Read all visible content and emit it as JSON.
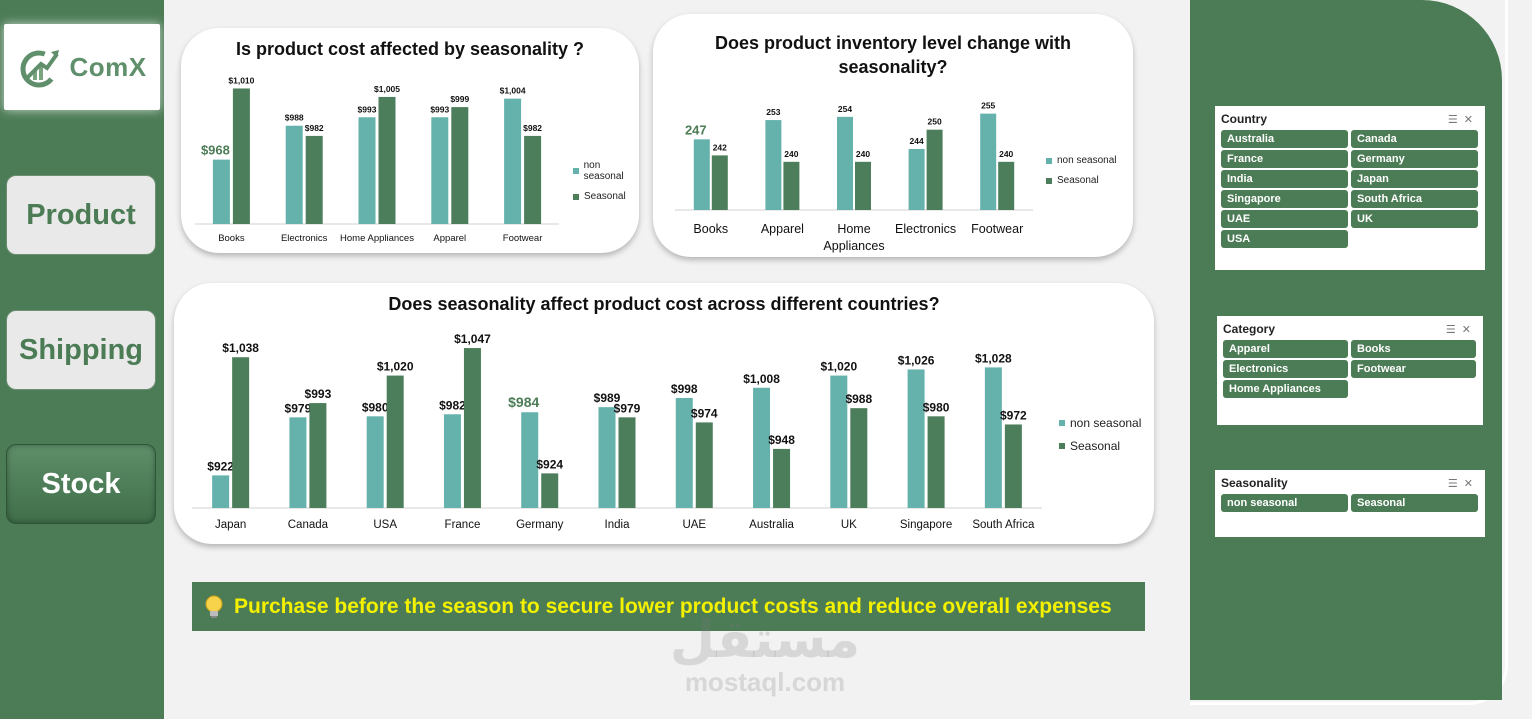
{
  "sidebar": {
    "logo_text": "ComX",
    "nav": [
      {
        "label": "Product"
      },
      {
        "label": "Shipping"
      },
      {
        "label": "Stock"
      }
    ]
  },
  "colors": {
    "non_seasonal": "#65b2ac",
    "seasonal": "#4d7e5b",
    "highlight": "#4c7c56",
    "insight_text": "#f3f000"
  },
  "insight": {
    "text": "Purchase before the season to secure lower product costs and reduce overall expenses"
  },
  "watermark": {
    "arabic": "مستقل",
    "latin": "mostaql.com"
  },
  "legend": {
    "non_seasonal": "non seasonal",
    "seasonal": "Seasonal"
  },
  "chart_data": [
    {
      "id": "cost_by_category",
      "type": "bar",
      "title": "Is product cost affected by seasonality ?",
      "categories": [
        "Books",
        "Electronics",
        "Home Appliances",
        "Apparel",
        "Footwear"
      ],
      "series": [
        {
          "name": "non seasonal",
          "values": [
            968,
            988,
            993,
            993,
            1004
          ],
          "labels": [
            "$968",
            "$988",
            "$993",
            "$993",
            "$1,004"
          ]
        },
        {
          "name": "Seasonal",
          "values": [
            1010,
            982,
            1005,
            999,
            982
          ],
          "labels": [
            "$1,010",
            "$982",
            "$1,005",
            "$999",
            "$982"
          ]
        }
      ],
      "ylim": [
        930,
        1015
      ],
      "highlight": {
        "series": 0,
        "index": 0
      }
    },
    {
      "id": "inventory_by_category",
      "type": "bar",
      "title": "Does product inventory level change with seasonality?",
      "categories": [
        "Books",
        "Apparel",
        "Home Appliances",
        "Electronics",
        "Footwear"
      ],
      "series": [
        {
          "name": "non seasonal",
          "values": [
            247,
            253,
            254,
            244,
            255
          ],
          "labels": [
            "247",
            "253",
            "254",
            "244",
            "255"
          ]
        },
        {
          "name": "Seasonal",
          "values": [
            242,
            240,
            240,
            250,
            240
          ],
          "labels": [
            "242",
            "240",
            "240",
            "250",
            "240"
          ]
        }
      ],
      "ylim": [
        225,
        258
      ],
      "highlight": {
        "series": 0,
        "index": 0
      }
    },
    {
      "id": "cost_by_country",
      "type": "bar",
      "title": "Does seasonality affect product cost across different countries?",
      "categories": [
        "Japan",
        "Canada",
        "USA",
        "France",
        "Germany",
        "India",
        "UAE",
        "Australia",
        "UK",
        "Singapore",
        "South Africa"
      ],
      "series": [
        {
          "name": "non seasonal",
          "values": [
            922,
            979,
            980,
            982,
            984,
            989,
            998,
            1008,
            1020,
            1026,
            1028
          ],
          "labels": [
            "$922",
            "$979",
            "$980",
            "$982",
            "$984",
            "$989",
            "$998",
            "$1,008",
            "$1,020",
            "$1,026",
            "$1,028"
          ]
        },
        {
          "name": "Seasonal",
          "values": [
            1038,
            993,
            1020,
            1047,
            924,
            979,
            974,
            948,
            988,
            980,
            972
          ],
          "labels": [
            "$1,038",
            "$993",
            "$1,020",
            "$1,047",
            "$924",
            "$979",
            "$974",
            "$948",
            "$988",
            "$980",
            "$972"
          ]
        }
      ],
      "ylim": [
        890,
        1050
      ],
      "highlight": {
        "series": 0,
        "index": 4
      }
    }
  ],
  "filters": {
    "country": {
      "title": "Country",
      "items": [
        "Australia",
        "Canada",
        "France",
        "Germany",
        "India",
        "Japan",
        "Singapore",
        "South Africa",
        "UAE",
        "UK",
        "USA"
      ]
    },
    "category": {
      "title": "Category",
      "items": [
        "Apparel",
        "Books",
        "Electronics",
        "Footwear",
        "Home Appliances"
      ]
    },
    "seasonality": {
      "title": "Seasonality",
      "items": [
        "non seasonal",
        "Seasonal"
      ]
    }
  }
}
